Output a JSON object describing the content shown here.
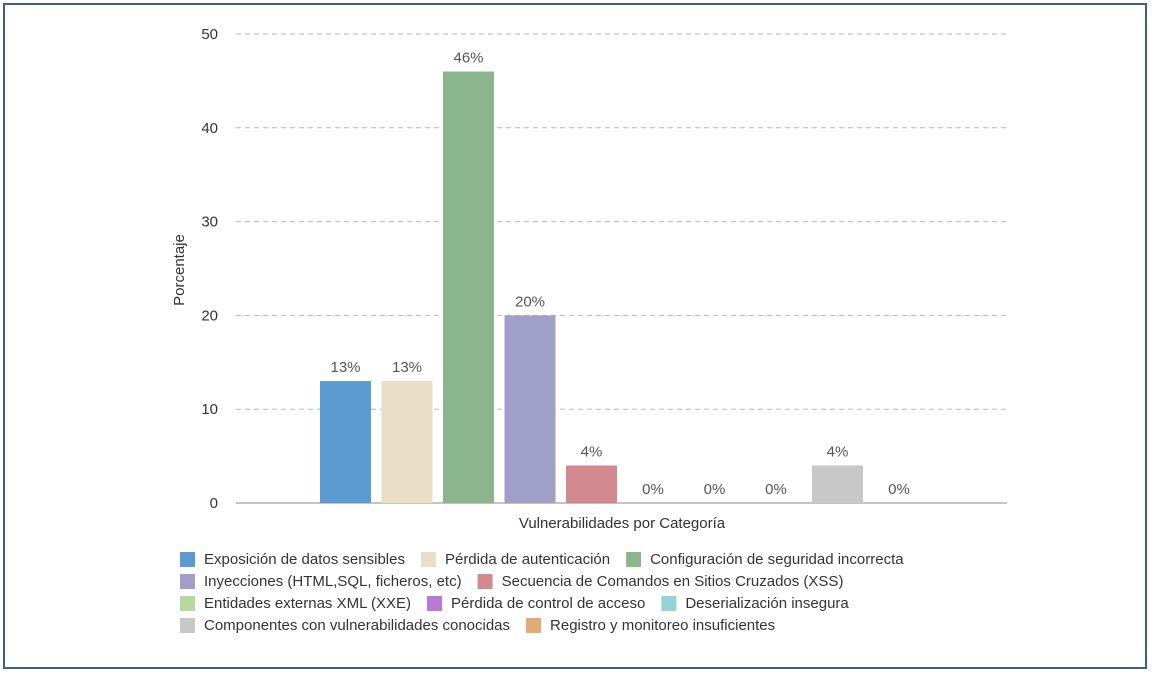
{
  "chart_data": {
    "type": "bar",
    "ylabel": "Porcentaje",
    "xlabel": "Vulnerabilidades por Categoría",
    "ylim": [
      0,
      50
    ],
    "yticks": [
      0,
      10,
      20,
      30,
      40,
      50
    ],
    "grid": true,
    "legend_position": "bottom",
    "categories": [
      "Exposición de datos sensibles",
      "Pérdida de autenticación",
      "Configuración de seguridad incorrecta",
      "Inyecciones (HTML,SQL, ficheros, etc)",
      "Secuencia de Comandos en Sitios Cruzados (XSS)",
      "Entidades externas XML (XXE)",
      "Pérdida de control de acceso",
      "Deserialización insegura",
      "Componentes con vulnerabilidades conocidas",
      "Registro y monitoreo insuficientes"
    ],
    "values": [
      13,
      13,
      46,
      20,
      4,
      0,
      0,
      0,
      4,
      0
    ],
    "data_labels": [
      "13%",
      "13%",
      "46%",
      "20%",
      "4%",
      "0%",
      "0%",
      "0%",
      "4%",
      "0%"
    ],
    "colors": [
      "#5b9bd0",
      "#e8dfc6",
      "#8bb58b",
      "#9f9fc8",
      "#d28a8e",
      "#b5d9a0",
      "#b97ad4",
      "#93d5d3",
      "#c8c8c8",
      "#dfac78"
    ],
    "legend_rows": [
      [
        0,
        1,
        2
      ],
      [
        3,
        4
      ],
      [
        5,
        6,
        7
      ],
      [
        8,
        9
      ]
    ]
  }
}
